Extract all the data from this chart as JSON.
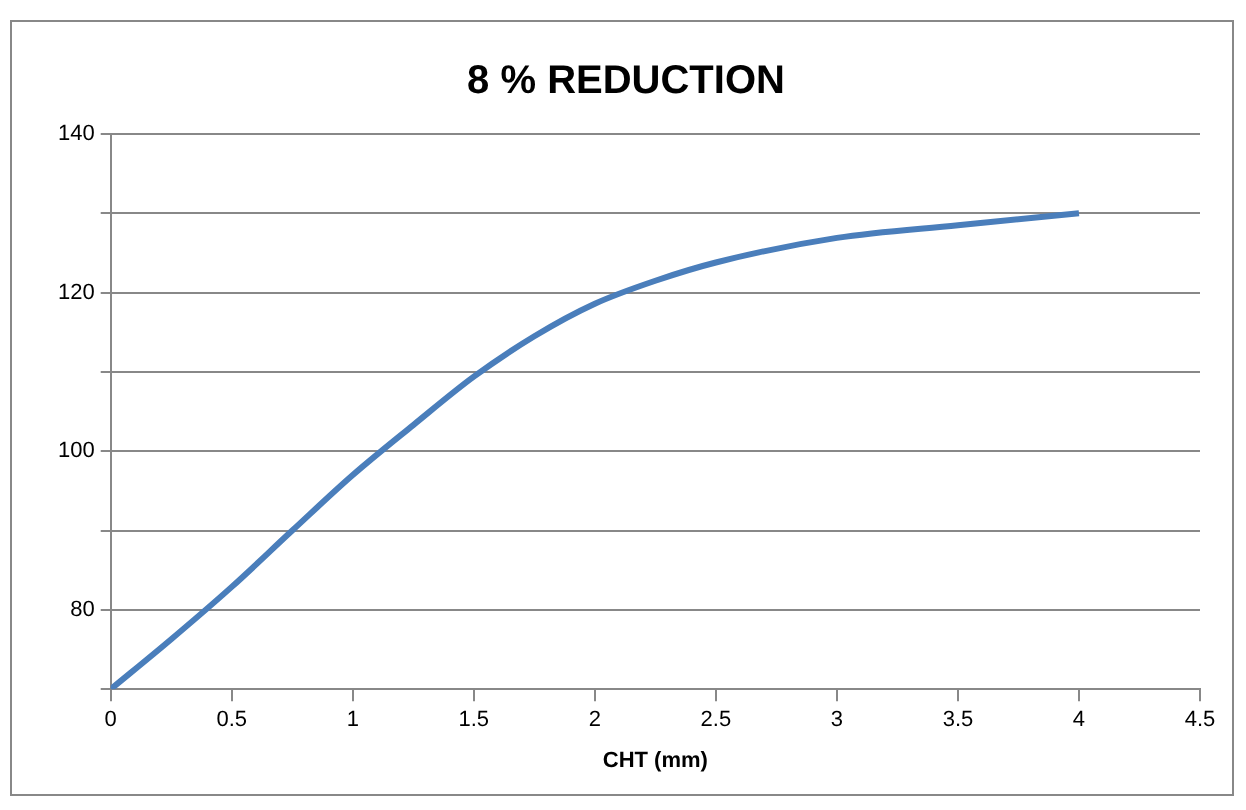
{
  "chart_data": {
    "type": "line",
    "title": "8 % REDUCTION",
    "xlabel": "CHT (mm)",
    "x": [
      0,
      0.25,
      0.5,
      0.75,
      1,
      1.25,
      1.5,
      1.75,
      2,
      2.25,
      2.5,
      3,
      3.5,
      4
    ],
    "series": [
      {
        "color": "#4a7ebb",
        "values": [
          70,
          76.3,
          82.9,
          90,
          97,
          103.3,
          109.4,
          114.5,
          118.6,
          121.5,
          123.8,
          126.9,
          128.5,
          130
        ]
      }
    ],
    "xlim": [
      0,
      4.5
    ],
    "xticks": [
      0,
      0.5,
      1,
      1.5,
      2,
      2.5,
      3,
      3.5,
      4,
      4.5
    ],
    "ylim": [
      70,
      140
    ],
    "yticks": [
      {
        "value": 70,
        "label": null
      },
      80,
      {
        "value": 90,
        "label": null
      },
      100,
      {
        "value": 110,
        "label": null
      },
      120,
      {
        "value": 130,
        "label": null
      },
      140
    ],
    "grid": "y",
    "legend": false,
    "marker": "none",
    "line_style": "solid"
  }
}
